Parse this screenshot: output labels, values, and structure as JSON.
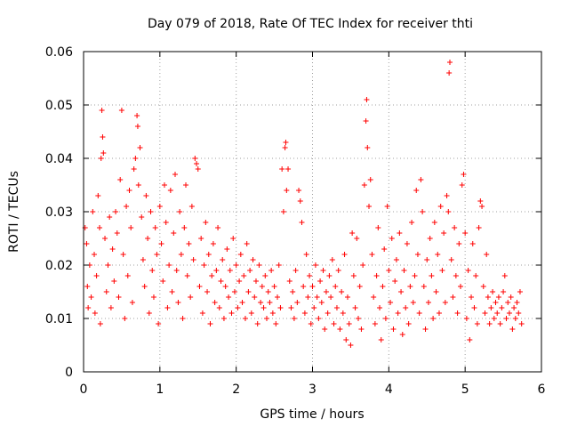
{
  "chart_data": {
    "type": "scatter",
    "title": "Day 079 of 2018, Rate Of TEC Index for receiver thti",
    "xlabel": "GPS time / hours",
    "ylabel": "ROTI / TECUs",
    "xlim": [
      0,
      6
    ],
    "ylim": [
      0,
      0.06
    ],
    "grid": true,
    "marker": "+",
    "marker_color": "#ff0000",
    "x_ticks": [
      "0",
      "1",
      "2",
      "3",
      "4",
      "5",
      "6"
    ],
    "y_ticks": [
      "0",
      "0.01",
      "0.02",
      "0.03",
      "0.04",
      "0.05",
      "0.06"
    ],
    "series": [
      {
        "name": "ROTI",
        "points": [
          [
            0.02,
            0.027
          ],
          [
            0.04,
            0.024
          ],
          [
            0.05,
            0.016
          ],
          [
            0.06,
            0.012
          ],
          [
            0.08,
            0.02
          ],
          [
            0.1,
            0.014
          ],
          [
            0.12,
            0.03
          ],
          [
            0.14,
            0.022
          ],
          [
            0.15,
            0.011
          ],
          [
            0.17,
            0.018
          ],
          [
            0.19,
            0.033
          ],
          [
            0.21,
            0.027
          ],
          [
            0.22,
            0.009
          ],
          [
            0.23,
            0.04
          ],
          [
            0.24,
            0.049
          ],
          [
            0.25,
            0.044
          ],
          [
            0.26,
            0.041
          ],
          [
            0.28,
            0.025
          ],
          [
            0.3,
            0.015
          ],
          [
            0.32,
            0.02
          ],
          [
            0.34,
            0.029
          ],
          [
            0.36,
            0.012
          ],
          [
            0.38,
            0.023
          ],
          [
            0.4,
            0.017
          ],
          [
            0.42,
            0.03
          ],
          [
            0.44,
            0.026
          ],
          [
            0.46,
            0.014
          ],
          [
            0.48,
            0.036
          ],
          [
            0.5,
            0.049
          ],
          [
            0.52,
            0.022
          ],
          [
            0.54,
            0.01
          ],
          [
            0.56,
            0.031
          ],
          [
            0.58,
            0.018
          ],
          [
            0.6,
            0.034
          ],
          [
            0.62,
            0.027
          ],
          [
            0.64,
            0.013
          ],
          [
            0.66,
            0.038
          ],
          [
            0.68,
            0.04
          ],
          [
            0.7,
            0.048
          ],
          [
            0.71,
            0.046
          ],
          [
            0.72,
            0.035
          ],
          [
            0.74,
            0.042
          ],
          [
            0.76,
            0.029
          ],
          [
            0.78,
            0.021
          ],
          [
            0.8,
            0.016
          ],
          [
            0.82,
            0.033
          ],
          [
            0.84,
            0.025
          ],
          [
            0.86,
            0.011
          ],
          [
            0.88,
            0.03
          ],
          [
            0.9,
            0.019
          ],
          [
            0.92,
            0.014
          ],
          [
            0.94,
            0.027
          ],
          [
            0.96,
            0.022
          ],
          [
            0.98,
            0.009
          ],
          [
            1.0,
            0.031
          ],
          [
            1.02,
            0.024
          ],
          [
            1.04,
            0.017
          ],
          [
            1.06,
            0.035
          ],
          [
            1.08,
            0.028
          ],
          [
            1.1,
            0.012
          ],
          [
            1.12,
            0.02
          ],
          [
            1.14,
            0.034
          ],
          [
            1.16,
            0.015
          ],
          [
            1.18,
            0.026
          ],
          [
            1.2,
            0.037
          ],
          [
            1.22,
            0.019
          ],
          [
            1.24,
            0.013
          ],
          [
            1.26,
            0.03
          ],
          [
            1.28,
            0.022
          ],
          [
            1.3,
            0.01
          ],
          [
            1.32,
            0.027
          ],
          [
            1.34,
            0.035
          ],
          [
            1.36,
            0.018
          ],
          [
            1.38,
            0.024
          ],
          [
            1.4,
            0.014
          ],
          [
            1.42,
            0.031
          ],
          [
            1.44,
            0.021
          ],
          [
            1.46,
            0.04
          ],
          [
            1.48,
            0.039
          ],
          [
            1.5,
            0.038
          ],
          [
            1.52,
            0.016
          ],
          [
            1.54,
            0.025
          ],
          [
            1.56,
            0.011
          ],
          [
            1.58,
            0.02
          ],
          [
            1.6,
            0.028
          ],
          [
            1.62,
            0.015
          ],
          [
            1.64,
            0.022
          ],
          [
            1.66,
            0.009
          ],
          [
            1.68,
            0.018
          ],
          [
            1.7,
            0.024
          ],
          [
            1.72,
            0.013
          ],
          [
            1.74,
            0.019
          ],
          [
            1.76,
            0.027
          ],
          [
            1.78,
            0.012
          ],
          [
            1.8,
            0.017
          ],
          [
            1.82,
            0.021
          ],
          [
            1.84,
            0.01
          ],
          [
            1.86,
            0.016
          ],
          [
            1.88,
            0.023
          ],
          [
            1.9,
            0.014
          ],
          [
            1.92,
            0.019
          ],
          [
            1.94,
            0.011
          ],
          [
            1.96,
            0.025
          ],
          [
            1.98,
            0.015
          ],
          [
            2.0,
            0.02
          ],
          [
            2.02,
            0.012
          ],
          [
            2.04,
            0.017
          ],
          [
            2.06,
            0.022
          ],
          [
            2.08,
            0.013
          ],
          [
            2.1,
            0.018
          ],
          [
            2.12,
            0.01
          ],
          [
            2.14,
            0.024
          ],
          [
            2.16,
            0.015
          ],
          [
            2.18,
            0.019
          ],
          [
            2.2,
            0.011
          ],
          [
            2.22,
            0.021
          ],
          [
            2.24,
            0.014
          ],
          [
            2.26,
            0.017
          ],
          [
            2.28,
            0.009
          ],
          [
            2.3,
            0.02
          ],
          [
            2.32,
            0.013
          ],
          [
            2.34,
            0.016
          ],
          [
            2.36,
            0.012
          ],
          [
            2.38,
            0.018
          ],
          [
            2.4,
            0.01
          ],
          [
            2.42,
            0.015
          ],
          [
            2.44,
            0.013
          ],
          [
            2.46,
            0.019
          ],
          [
            2.48,
            0.011
          ],
          [
            2.5,
            0.016
          ],
          [
            2.52,
            0.009
          ],
          [
            2.54,
            0.014
          ],
          [
            2.56,
            0.02
          ],
          [
            2.58,
            0.012
          ],
          [
            2.6,
            0.038
          ],
          [
            2.62,
            0.03
          ],
          [
            2.64,
            0.042
          ],
          [
            2.65,
            0.043
          ],
          [
            2.66,
            0.034
          ],
          [
            2.68,
            0.038
          ],
          [
            2.7,
            0.017
          ],
          [
            2.72,
            0.012
          ],
          [
            2.74,
            0.015
          ],
          [
            2.76,
            0.01
          ],
          [
            2.78,
            0.019
          ],
          [
            2.8,
            0.013
          ],
          [
            2.82,
            0.034
          ],
          [
            2.84,
            0.032
          ],
          [
            2.86,
            0.028
          ],
          [
            2.88,
            0.016
          ],
          [
            2.9,
            0.011
          ],
          [
            2.92,
            0.022
          ],
          [
            2.94,
            0.014
          ],
          [
            2.96,
            0.018
          ],
          [
            2.98,
            0.009
          ],
          [
            3.0,
            0.016
          ],
          [
            3.02,
            0.012
          ],
          [
            3.04,
            0.02
          ],
          [
            3.06,
            0.014
          ],
          [
            3.08,
            0.01
          ],
          [
            3.1,
            0.017
          ],
          [
            3.12,
            0.013
          ],
          [
            3.14,
            0.019
          ],
          [
            3.16,
            0.008
          ],
          [
            3.18,
            0.015
          ],
          [
            3.2,
            0.011
          ],
          [
            3.22,
            0.018
          ],
          [
            3.24,
            0.014
          ],
          [
            3.26,
            0.021
          ],
          [
            3.28,
            0.009
          ],
          [
            3.3,
            0.016
          ],
          [
            3.32,
            0.012
          ],
          [
            3.34,
            0.019
          ],
          [
            3.36,
            0.008
          ],
          [
            3.38,
            0.015
          ],
          [
            3.4,
            0.011
          ],
          [
            3.42,
            0.022
          ],
          [
            3.44,
            0.006
          ],
          [
            3.46,
            0.014
          ],
          [
            3.48,
            0.009
          ],
          [
            3.5,
            0.005
          ],
          [
            3.52,
            0.026
          ],
          [
            3.54,
            0.018
          ],
          [
            3.56,
            0.012
          ],
          [
            3.58,
            0.025
          ],
          [
            3.6,
            0.01
          ],
          [
            3.62,
            0.016
          ],
          [
            3.64,
            0.008
          ],
          [
            3.66,
            0.02
          ],
          [
            3.68,
            0.035
          ],
          [
            3.7,
            0.047
          ],
          [
            3.71,
            0.051
          ],
          [
            3.72,
            0.042
          ],
          [
            3.74,
            0.031
          ],
          [
            3.76,
            0.036
          ],
          [
            3.78,
            0.022
          ],
          [
            3.8,
            0.014
          ],
          [
            3.82,
            0.009
          ],
          [
            3.84,
            0.018
          ],
          [
            3.86,
            0.027
          ],
          [
            3.88,
            0.012
          ],
          [
            3.9,
            0.006
          ],
          [
            3.92,
            0.016
          ],
          [
            3.94,
            0.023
          ],
          [
            3.96,
            0.01
          ],
          [
            3.98,
            0.031
          ],
          [
            4.0,
            0.019
          ],
          [
            4.02,
            0.013
          ],
          [
            4.04,
            0.025
          ],
          [
            4.06,
            0.008
          ],
          [
            4.08,
            0.017
          ],
          [
            4.1,
            0.021
          ],
          [
            4.12,
            0.011
          ],
          [
            4.14,
            0.026
          ],
          [
            4.16,
            0.015
          ],
          [
            4.18,
            0.007
          ],
          [
            4.2,
            0.019
          ],
          [
            4.22,
            0.012
          ],
          [
            4.24,
            0.024
          ],
          [
            4.26,
            0.009
          ],
          [
            4.28,
            0.016
          ],
          [
            4.3,
            0.028
          ],
          [
            4.32,
            0.013
          ],
          [
            4.34,
            0.018
          ],
          [
            4.36,
            0.034
          ],
          [
            4.38,
            0.022
          ],
          [
            4.4,
            0.011
          ],
          [
            4.42,
            0.036
          ],
          [
            4.44,
            0.03
          ],
          [
            4.46,
            0.016
          ],
          [
            4.48,
            0.008
          ],
          [
            4.5,
            0.021
          ],
          [
            4.52,
            0.013
          ],
          [
            4.54,
            0.025
          ],
          [
            4.56,
            0.018
          ],
          [
            4.58,
            0.01
          ],
          [
            4.6,
            0.028
          ],
          [
            4.62,
            0.015
          ],
          [
            4.64,
            0.022
          ],
          [
            4.66,
            0.011
          ],
          [
            4.68,
            0.031
          ],
          [
            4.7,
            0.019
          ],
          [
            4.72,
            0.026
          ],
          [
            4.74,
            0.013
          ],
          [
            4.76,
            0.033
          ],
          [
            4.78,
            0.03
          ],
          [
            4.79,
            0.056
          ],
          [
            4.8,
            0.058
          ],
          [
            4.82,
            0.021
          ],
          [
            4.84,
            0.014
          ],
          [
            4.86,
            0.027
          ],
          [
            4.88,
            0.018
          ],
          [
            4.9,
            0.011
          ],
          [
            4.92,
            0.024
          ],
          [
            4.94,
            0.016
          ],
          [
            4.96,
            0.035
          ],
          [
            4.98,
            0.037
          ],
          [
            5.0,
            0.026
          ],
          [
            5.02,
            0.01
          ],
          [
            5.04,
            0.019
          ],
          [
            5.06,
            0.006
          ],
          [
            5.08,
            0.014
          ],
          [
            5.1,
            0.024
          ],
          [
            5.12,
            0.012
          ],
          [
            5.14,
            0.018
          ],
          [
            5.16,
            0.009
          ],
          [
            5.18,
            0.027
          ],
          [
            5.2,
            0.032
          ],
          [
            5.22,
            0.031
          ],
          [
            5.24,
            0.016
          ],
          [
            5.26,
            0.011
          ],
          [
            5.28,
            0.022
          ],
          [
            5.3,
            0.014
          ],
          [
            5.32,
            0.009
          ],
          [
            5.34,
            0.012
          ],
          [
            5.36,
            0.015
          ],
          [
            5.38,
            0.01
          ],
          [
            5.4,
            0.013
          ],
          [
            5.42,
            0.011
          ],
          [
            5.44,
            0.014
          ],
          [
            5.46,
            0.009
          ],
          [
            5.48,
            0.012
          ],
          [
            5.5,
            0.015
          ],
          [
            5.52,
            0.018
          ],
          [
            5.54,
            0.01
          ],
          [
            5.56,
            0.013
          ],
          [
            5.58,
            0.011
          ],
          [
            5.6,
            0.014
          ],
          [
            5.62,
            0.008
          ],
          [
            5.64,
            0.012
          ],
          [
            5.66,
            0.01
          ],
          [
            5.68,
            0.013
          ],
          [
            5.7,
            0.011
          ],
          [
            5.72,
            0.015
          ],
          [
            5.74,
            0.009
          ]
        ]
      }
    ]
  }
}
